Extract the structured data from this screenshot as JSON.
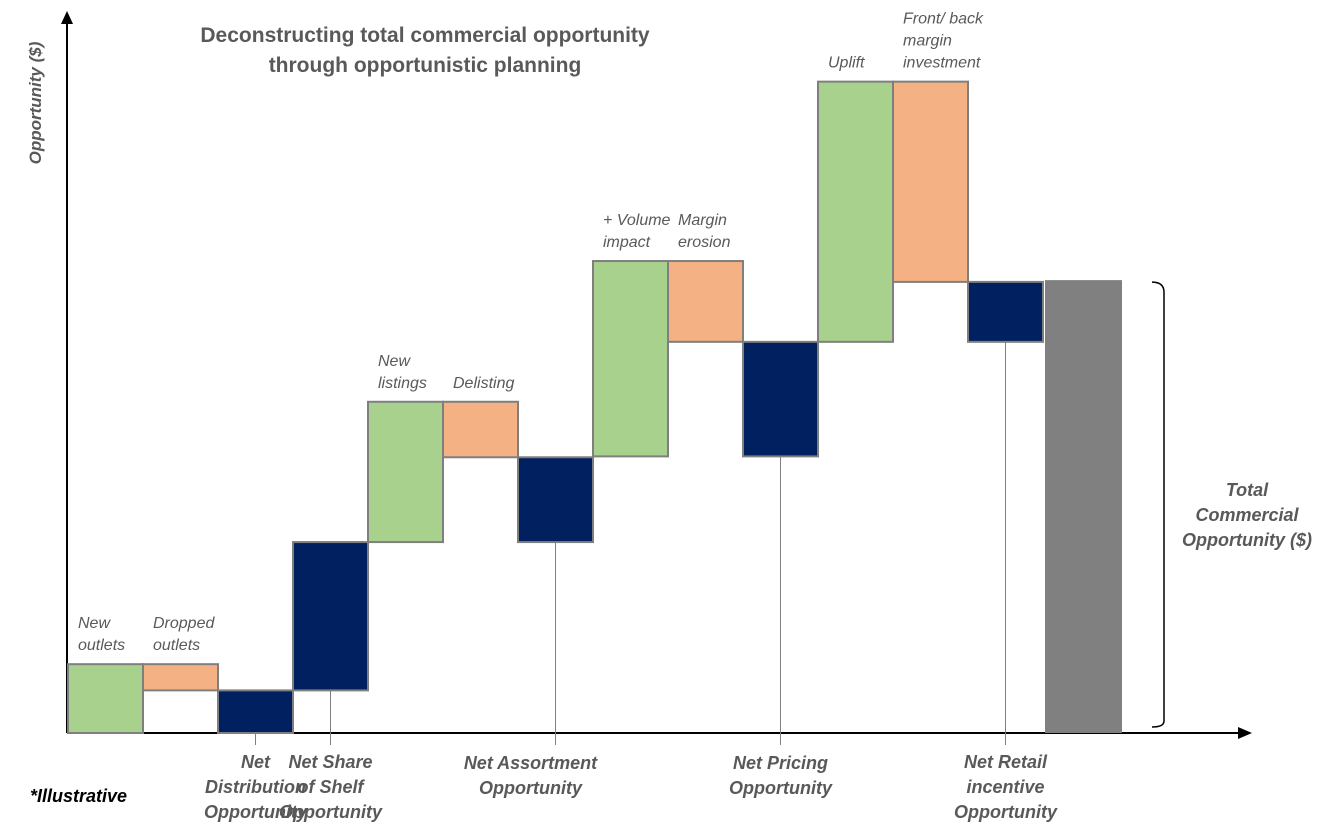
{
  "chart_data": {
    "type": "waterfall",
    "title_lines": [
      "Deconstructing total commercial opportunity",
      "through opportunistic planning"
    ],
    "ylabel": "Opportunity ($)",
    "ylim": [
      0,
      100
    ],
    "note": "*Illustrative",
    "bracket_label_lines": [
      "Total",
      "Commercial",
      "Opportunity ($)"
    ],
    "colors": {
      "increase": "#a9d18e",
      "decrease": "#f4b183",
      "net": "#002060",
      "total": "#808080",
      "border": "#7f7f7f"
    },
    "steps": [
      {
        "label_lines": [
          "New",
          "outlets"
        ],
        "kind": "increase",
        "start": 0,
        "end": 15.5
      },
      {
        "label_lines": [
          "Dropped",
          "outlets"
        ],
        "kind": "decrease",
        "start": 15.5,
        "end": 9.6
      },
      {
        "category_lines": [
          "Net",
          "Distribution",
          "Opportunity"
        ],
        "kind": "net",
        "start": 0,
        "end": 9.6
      },
      {
        "category_lines": [
          "Net Share",
          "of Shelf",
          "Opportunity"
        ],
        "kind": "net",
        "start": 9.6,
        "end": 43
      },
      {
        "label_lines": [
          "New",
          "listings"
        ],
        "kind": "increase",
        "start": 43,
        "end": 74.6
      },
      {
        "label_lines": [
          "Delisting"
        ],
        "kind": "decrease",
        "start": 74.6,
        "end": 62.1
      },
      {
        "category_lines": [
          "Net Assortment",
          "Opportunity"
        ],
        "kind": "net",
        "start": 43,
        "end": 62.1
      },
      {
        "label_lines": [
          "+ Volume",
          "impact"
        ],
        "kind": "increase",
        "start": 62.3,
        "end": 106.3
      },
      {
        "label_lines": [
          "Margin",
          "erosion"
        ],
        "kind": "decrease",
        "start": 106.3,
        "end": 88.1
      },
      {
        "category_lines": [
          "Net Pricing",
          "Opportunity"
        ],
        "kind": "net",
        "start": 62.3,
        "end": 88.1
      },
      {
        "label_lines": [
          "Uplift"
        ],
        "kind": "increase",
        "start": 88.1,
        "end": 146.7
      },
      {
        "label_lines": [
          "Front/ back",
          "margin",
          "investment"
        ],
        "kind": "decrease",
        "start": 146.7,
        "end": 101.6
      },
      {
        "category_lines": [
          "Net Retail",
          "incentive",
          "Opportunity"
        ],
        "kind": "net",
        "start": 88.1,
        "end": 101.6
      },
      {
        "kind": "total",
        "start": 0,
        "end": 102
      }
    ]
  }
}
